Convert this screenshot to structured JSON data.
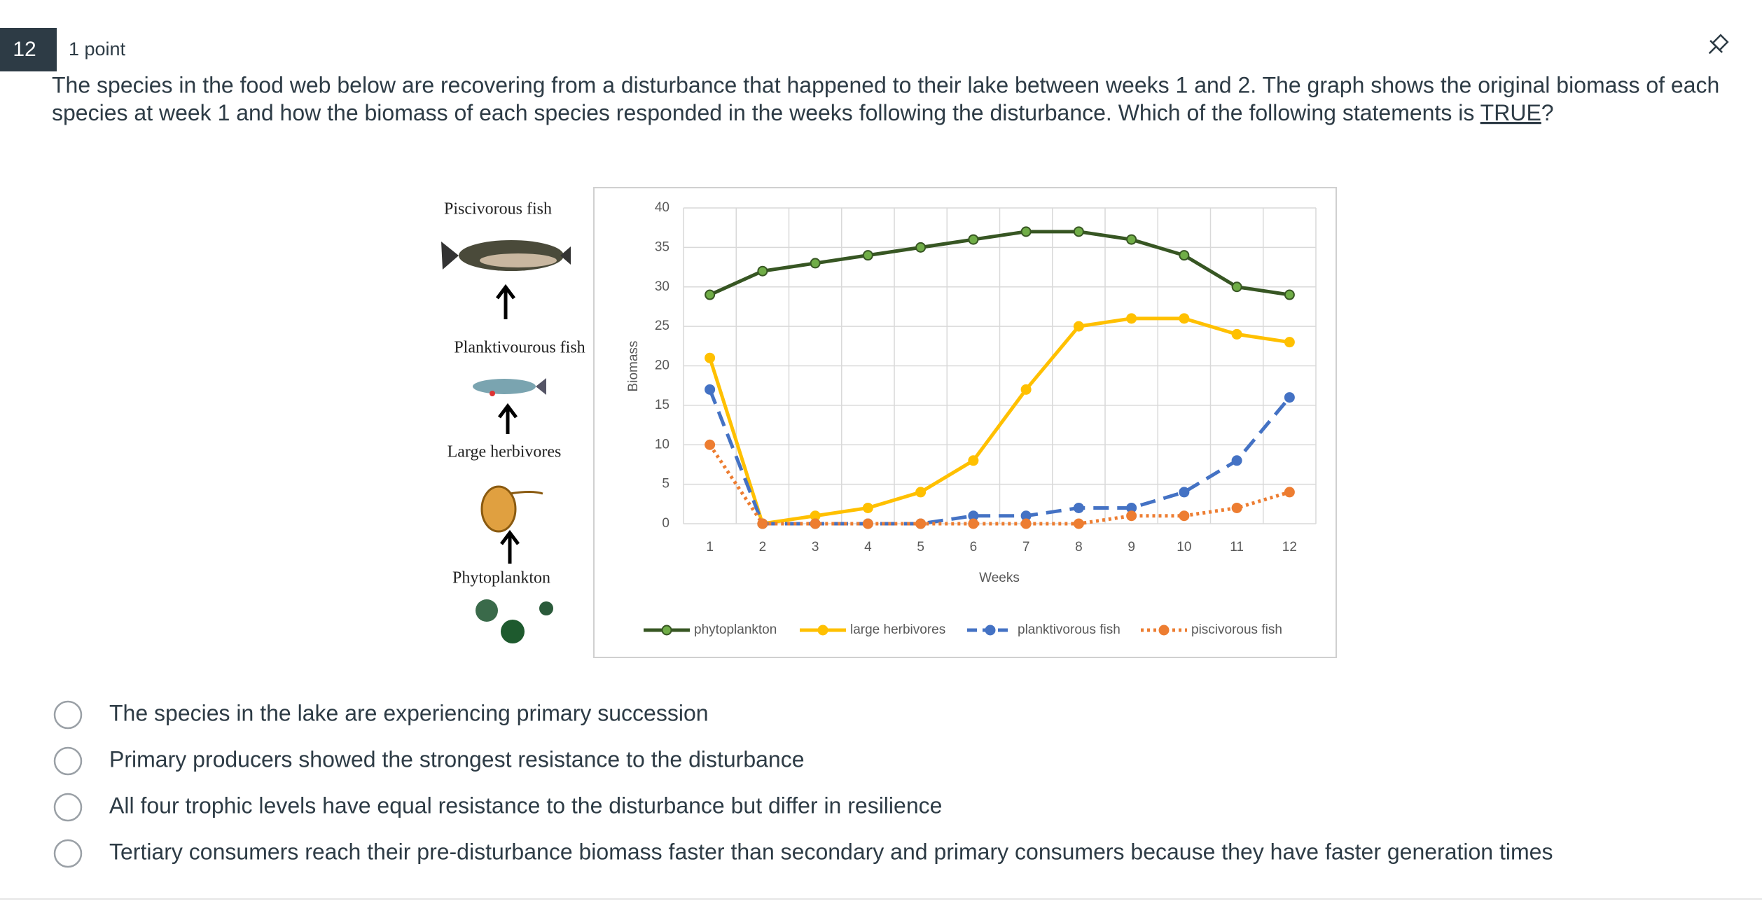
{
  "question": {
    "number": "12",
    "points": "1 point",
    "line1": "The species in the food web below are recovering from a disturbance that happened to their lake between weeks 1 and 2. The graph shows the original biomass of each",
    "line2_before": "species at week 1 and how the biomass of each species responded in the weeks following the disturbance.  Which of the following statements is ",
    "line2_emphasis": "TRUE",
    "line2_after": "?"
  },
  "food_web": [
    "Piscivorous fish",
    "Planktivourous fish",
    "Large herbivores",
    "Phytoplankton"
  ],
  "chart_data": {
    "type": "line",
    "x_label": "Weeks",
    "y_label": "Biomass",
    "categories": [
      "1",
      "2",
      "3",
      "4",
      "5",
      "6",
      "7",
      "8",
      "9",
      "10",
      "11",
      "12"
    ],
    "ylim": [
      0,
      40
    ],
    "yticks": [
      0,
      5,
      10,
      15,
      20,
      25,
      30,
      35,
      40
    ],
    "grid": true,
    "legend": "bottom",
    "series": [
      {
        "name": "phytoplankton",
        "color": "#375623",
        "marker_color": "#70ad47",
        "dash": "solid",
        "values": [
          29,
          32,
          33,
          34,
          35,
          36,
          37,
          37,
          36,
          34,
          30,
          29
        ]
      },
      {
        "name": "large herbivores",
        "color": "#ffc000",
        "marker_color": "#ffc000",
        "dash": "solid",
        "values": [
          21,
          0,
          1,
          2,
          4,
          8,
          17,
          25,
          26,
          26,
          24,
          23
        ]
      },
      {
        "name": "planktivorous fish",
        "color": "#4472c4",
        "marker_color": "#4472c4",
        "dash": "dashed",
        "values": [
          17,
          0,
          0,
          0,
          0,
          1,
          1,
          2,
          2,
          4,
          8,
          16
        ]
      },
      {
        "name": "piscivorous fish",
        "color": "#ed7d31",
        "marker_color": "#ed7d31",
        "dash": "dotted",
        "values": [
          10,
          0,
          0,
          0,
          0,
          0,
          0,
          0,
          1,
          1,
          2,
          4
        ]
      }
    ]
  },
  "options": [
    "The species in the lake are experiencing primary succession",
    "Primary producers showed the strongest resistance to the disturbance",
    "All four trophic levels have equal resistance to the disturbance but differ in resilience",
    "Tertiary consumers reach their pre-disturbance biomass faster than secondary and primary consumers because they have faster generation times"
  ]
}
